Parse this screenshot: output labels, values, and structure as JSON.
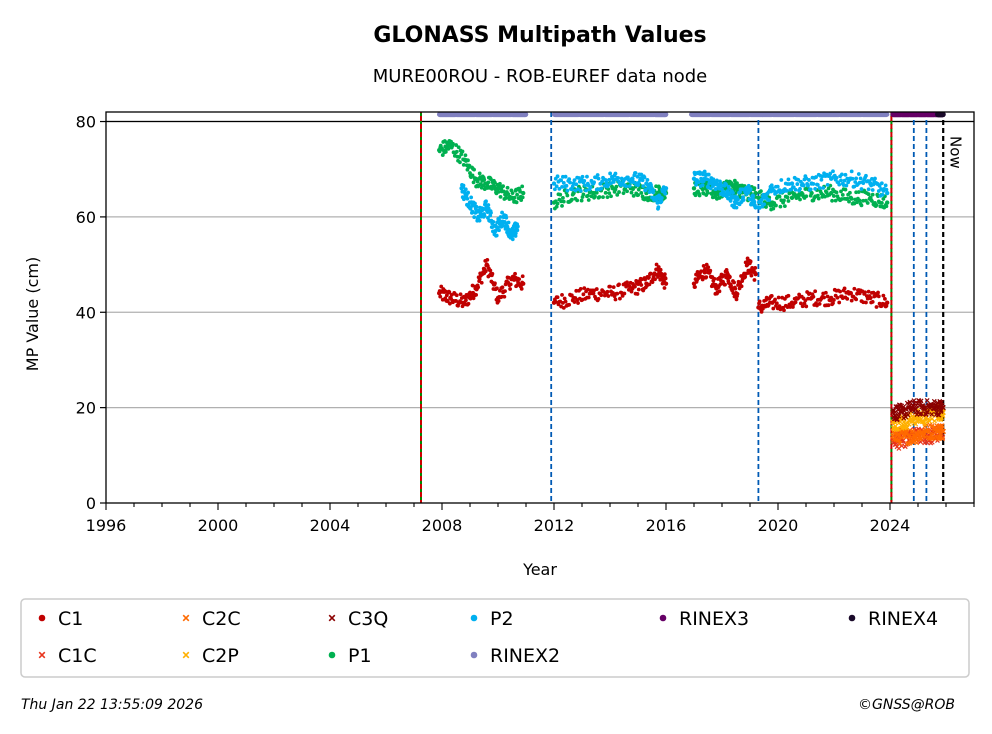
{
  "chart_data": {
    "type": "scatter",
    "title": "GLONASS Multipath Values",
    "subtitle": "MURE00ROU - ROB-EUREF data node",
    "xlabel": "Year",
    "ylabel": "MP Value (cm)",
    "xlim": [
      1996,
      2027
    ],
    "ylim": [
      0,
      82
    ],
    "x_ticks": [
      1996,
      2000,
      2004,
      2008,
      2012,
      2016,
      2020,
      2024
    ],
    "x_tick_labels": [
      "1996",
      "2000",
      "2004",
      "2008",
      "2012",
      "2016",
      "2020",
      "2024"
    ],
    "y_ticks": [
      0,
      20,
      40,
      60,
      80
    ],
    "y_tick_labels": [
      "0",
      "20",
      "40",
      "60",
      "80"
    ],
    "grid": "horizontal",
    "reference_line": 80,
    "now_label": "Now",
    "vlines": [
      {
        "x": 2007.25,
        "color": "#cc0000",
        "style": "dashed-redgreen"
      },
      {
        "x": 2011.9,
        "color": "#005ab4",
        "style": "dashed"
      },
      {
        "x": 2019.3,
        "color": "#005ab4",
        "style": "dashed"
      },
      {
        "x": 2024.05,
        "color": "#cc0000",
        "style": "dashed-redgreen"
      },
      {
        "x": 2024.85,
        "color": "#005ab4",
        "style": "dashed"
      },
      {
        "x": 2025.3,
        "color": "#005ab4",
        "style": "dashed"
      },
      {
        "x": 2025.9,
        "color": "#000000",
        "style": "dashed-now"
      }
    ],
    "series": [
      {
        "name": "C1",
        "color": "#c00000",
        "marker": "dot",
        "segments": [
          {
            "x": [
              2007.9,
              2008.3,
              2008.8,
              2009.2,
              2009.6,
              2010.0,
              2010.5,
              2010.9
            ],
            "y": [
              44,
              43,
              42,
              45,
              50,
              43,
              47,
              46
            ]
          },
          {
            "x": [
              2012.0,
              2012.7,
              2013.4,
              2014.1,
              2014.8,
              2015.3,
              2015.7,
              2016.0
            ],
            "y": [
              42,
              43,
              44,
              44,
              45,
              46,
              49,
              46
            ]
          },
          {
            "x": [
              2017.0,
              2017.4,
              2017.8,
              2018.2,
              2018.5,
              2018.9,
              2019.2
            ],
            "y": [
              46,
              49,
              45,
              48,
              44,
              50,
              48
            ]
          },
          {
            "x": [
              2019.3,
              2019.8,
              2020.5,
              2021.2,
              2021.9,
              2022.6,
              2023.3,
              2023.9
            ],
            "y": [
              41,
              42,
              42,
              43,
              43,
              44,
              43,
              42
            ]
          }
        ]
      },
      {
        "name": "C1C",
        "color": "#e8341c",
        "marker": "x",
        "segments": [
          {
            "x": [
              2024.1,
              2024.4,
              2024.8,
              2025.2,
              2025.6,
              2025.9
            ],
            "y": [
              13,
              13,
              14,
              14,
              14,
              15
            ]
          }
        ]
      },
      {
        "name": "C2C",
        "color": "#ff6a00",
        "marker": "x",
        "segments": [
          {
            "x": [
              2024.1,
              2024.5,
              2024.9,
              2025.3,
              2025.7,
              2025.9
            ],
            "y": [
              14,
              14,
              14,
              15,
              15,
              15
            ]
          }
        ]
      },
      {
        "name": "C2P",
        "color": "#ffb000",
        "marker": "x",
        "segments": [
          {
            "x": [
              2024.1,
              2024.5,
              2024.9,
              2025.3,
              2025.7,
              2025.9
            ],
            "y": [
              17,
              17,
              18,
              18,
              19,
              19
            ]
          }
        ]
      },
      {
        "name": "C3Q",
        "color": "#8b0000",
        "marker": "x",
        "segments": [
          {
            "x": [
              2024.1,
              2024.4,
              2024.8,
              2025.2,
              2025.6,
              2025.9
            ],
            "y": [
              19,
              19,
              20,
              20,
              20,
              20
            ]
          }
        ]
      },
      {
        "name": "P1",
        "color": "#00b050",
        "marker": "dot",
        "segments": [
          {
            "x": [
              2007.9,
              2008.3,
              2008.8,
              2009.2,
              2009.6,
              2010.0,
              2010.5,
              2010.9
            ],
            "y": [
              74,
              75,
              72,
              68,
              67,
              66,
              64,
              65
            ]
          },
          {
            "x": [
              2012.0,
              2012.7,
              2013.4,
              2014.1,
              2014.8,
              2015.3,
              2015.7,
              2016.0
            ],
            "y": [
              63,
              65,
              65,
              66,
              66,
              65,
              65,
              65
            ]
          },
          {
            "x": [
              2017.0,
              2017.4,
              2017.8,
              2018.2,
              2018.5,
              2018.9,
              2019.2
            ],
            "y": [
              66,
              66,
              65,
              66,
              66,
              65,
              65
            ]
          },
          {
            "x": [
              2019.3,
              2019.8,
              2020.5,
              2021.2,
              2021.9,
              2022.6,
              2023.3,
              2023.9
            ],
            "y": [
              64,
              63,
              64,
              65,
              65,
              64,
              64,
              63
            ]
          }
        ]
      },
      {
        "name": "P2",
        "color": "#00b0f0",
        "marker": "dot",
        "segments": [
          {
            "x": [
              2008.7,
              2009.0,
              2009.3,
              2009.6,
              2009.9,
              2010.2,
              2010.5,
              2010.7
            ],
            "y": [
              66,
              63,
              60,
              62,
              57,
              60,
              56,
              58
            ]
          },
          {
            "x": [
              2012.0,
              2012.7,
              2013.4,
              2014.1,
              2014.8,
              2015.3,
              2015.7,
              2016.0
            ],
            "y": [
              67,
              67,
              67,
              68,
              68,
              67,
              63,
              66
            ]
          },
          {
            "x": [
              2017.0,
              2017.4,
              2017.8,
              2018.2,
              2018.5,
              2018.9,
              2019.2
            ],
            "y": [
              68,
              68,
              67,
              65,
              63,
              66,
              62
            ]
          },
          {
            "x": [
              2019.3,
              2019.8,
              2020.5,
              2021.2,
              2021.9,
              2022.6,
              2023.3,
              2023.9
            ],
            "y": [
              62,
              66,
              67,
              67,
              68,
              68,
              67,
              65
            ]
          }
        ]
      },
      {
        "name": "RINEX2",
        "color": "#8080c0",
        "marker": "dot",
        "segments": [
          {
            "x": [
              2007.9,
              2008.5,
              2009.2,
              2009.8,
              2010.5,
              2011.0
            ],
            "y": [
              81.5,
              81.5,
              81.5,
              81.5,
              81.5,
              81.5
            ]
          },
          {
            "x": [
              2012.0,
              2012.9,
              2013.8,
              2014.7,
              2015.6,
              2016.0
            ],
            "y": [
              81.5,
              81.5,
              81.5,
              81.5,
              81.5,
              81.5
            ]
          },
          {
            "x": [
              2016.9,
              2017.6,
              2018.3,
              2019.0,
              2019.8,
              2020.6,
              2021.4,
              2022.2,
              2023.0,
              2023.9
            ],
            "y": [
              81.5,
              81.5,
              81.5,
              81.5,
              81.5,
              81.5,
              81.5,
              81.5,
              81.5,
              81.5
            ]
          }
        ]
      },
      {
        "name": "RINEX3",
        "color": "#660066",
        "marker": "dot",
        "segments": [
          {
            "x": [
              2024.1,
              2024.4,
              2024.7,
              2025.0,
              2025.3,
              2025.6,
              2025.9
            ],
            "y": [
              81.5,
              81.5,
              81.5,
              81.5,
              81.5,
              81.5,
              81.5
            ]
          }
        ]
      },
      {
        "name": "RINEX4",
        "color": "#1a0a2a",
        "marker": "dot",
        "segments": [
          {
            "x": [
              2025.7,
              2025.9
            ],
            "y": [
              81.5,
              81.5
            ]
          }
        ]
      }
    ],
    "legend": {
      "placement": "bottom",
      "rows": [
        [
          "C1",
          "C2C",
          "C3Q",
          "P2",
          "RINEX3",
          "RINEX4"
        ],
        [
          "C1C",
          "C2P",
          "P1",
          "RINEX2"
        ]
      ]
    }
  },
  "footer": {
    "timestamp": "Thu Jan 22 13:55:09 2026",
    "copyright": "©GNSS@ROB"
  }
}
